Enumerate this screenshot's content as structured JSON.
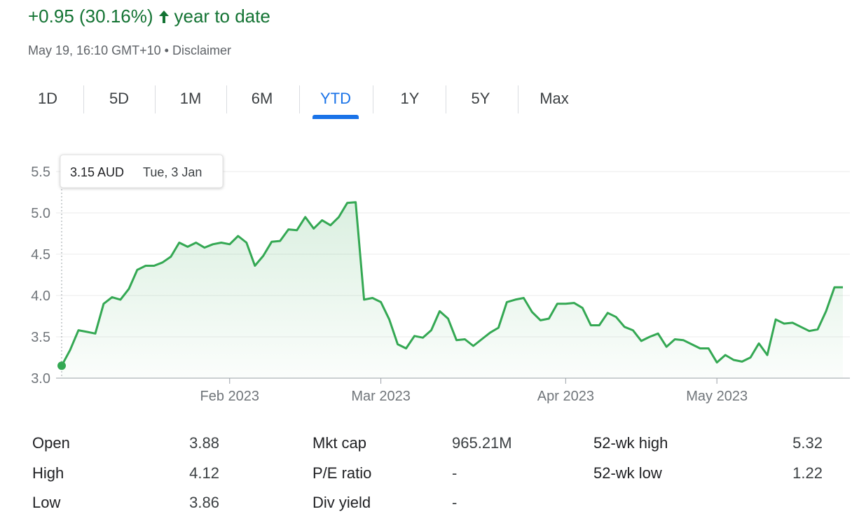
{
  "header": {
    "change": "+0.95 (30.16%)",
    "period": "year to date",
    "timestamp": "May 19, 16:10 GMT+10",
    "separator": "•",
    "disclaimer": "Disclaimer"
  },
  "ranges": {
    "items": [
      "1D",
      "5D",
      "1M",
      "6M",
      "YTD",
      "1Y",
      "5Y",
      "Max"
    ],
    "selected": "YTD"
  },
  "chart_data": {
    "type": "line",
    "categories": [
      null,
      null,
      null,
      null,
      null,
      null,
      null,
      null,
      null,
      null,
      null,
      null,
      null,
      null,
      null,
      null,
      null,
      null,
      null,
      null,
      "Feb 2023",
      null,
      null,
      null,
      null,
      null,
      null,
      null,
      null,
      null,
      null,
      null,
      null,
      null,
      null,
      null,
      null,
      null,
      "Mar 2023",
      null,
      null,
      null,
      null,
      null,
      null,
      null,
      null,
      null,
      null,
      null,
      null,
      null,
      null,
      null,
      null,
      null,
      null,
      null,
      null,
      null,
      "Apr 2023",
      null,
      null,
      null,
      null,
      null,
      null,
      null,
      null,
      null,
      null,
      null,
      null,
      null,
      null,
      null,
      null,
      null,
      "May 2023",
      null,
      null,
      null,
      null,
      null,
      null,
      null,
      null,
      null,
      null,
      null,
      null,
      null,
      null,
      null
    ],
    "values": [
      3.15,
      3.34,
      3.58,
      3.56,
      3.54,
      3.9,
      3.98,
      3.95,
      4.08,
      4.31,
      4.36,
      4.36,
      4.4,
      4.47,
      4.64,
      4.59,
      4.64,
      4.58,
      4.62,
      4.64,
      4.62,
      4.72,
      4.64,
      4.36,
      4.48,
      4.65,
      4.66,
      4.8,
      4.79,
      4.95,
      4.81,
      4.91,
      4.85,
      4.95,
      5.12,
      5.13,
      3.95,
      3.97,
      3.92,
      3.71,
      3.41,
      3.36,
      3.51,
      3.49,
      3.58,
      3.81,
      3.72,
      3.46,
      3.47,
      3.39,
      3.47,
      3.55,
      3.61,
      3.92,
      3.95,
      3.97,
      3.8,
      3.7,
      3.72,
      3.9,
      3.9,
      3.91,
      3.85,
      3.64,
      3.64,
      3.79,
      3.74,
      3.62,
      3.58,
      3.45,
      3.5,
      3.54,
      3.38,
      3.47,
      3.46,
      3.41,
      3.36,
      3.36,
      3.19,
      3.28,
      3.22,
      3.2,
      3.25,
      3.42,
      3.28,
      3.71,
      3.66,
      3.67,
      3.62,
      3.57,
      3.59,
      3.81,
      4.1,
      4.1
    ],
    "color": "#34a853",
    "ylim": [
      3,
      5.5
    ],
    "yticks": [
      {
        "value": 3,
        "label": "3.0"
      },
      3.5,
      {
        "value": 4,
        "label": "4.0"
      },
      4.5,
      {
        "value": 5,
        "label": "5.0"
      },
      5.5
    ],
    "grid": true,
    "tooltip": {
      "price": "3.15 AUD",
      "date": "Tue, 3 Jan"
    }
  },
  "stats": [
    [
      {
        "label": "Open",
        "value": "3.88"
      },
      {
        "label": "High",
        "value": "4.12"
      },
      {
        "label": "Low",
        "value": "3.86"
      }
    ],
    [
      {
        "label": "Mkt cap",
        "value": "965.21M"
      },
      {
        "label": "P/E ratio",
        "value": "-"
      },
      {
        "label": "Div yield",
        "value": "-"
      }
    ],
    [
      {
        "label": "52-wk high",
        "value": "5.32"
      },
      {
        "label": "52-wk low",
        "value": "1.22"
      }
    ]
  ]
}
